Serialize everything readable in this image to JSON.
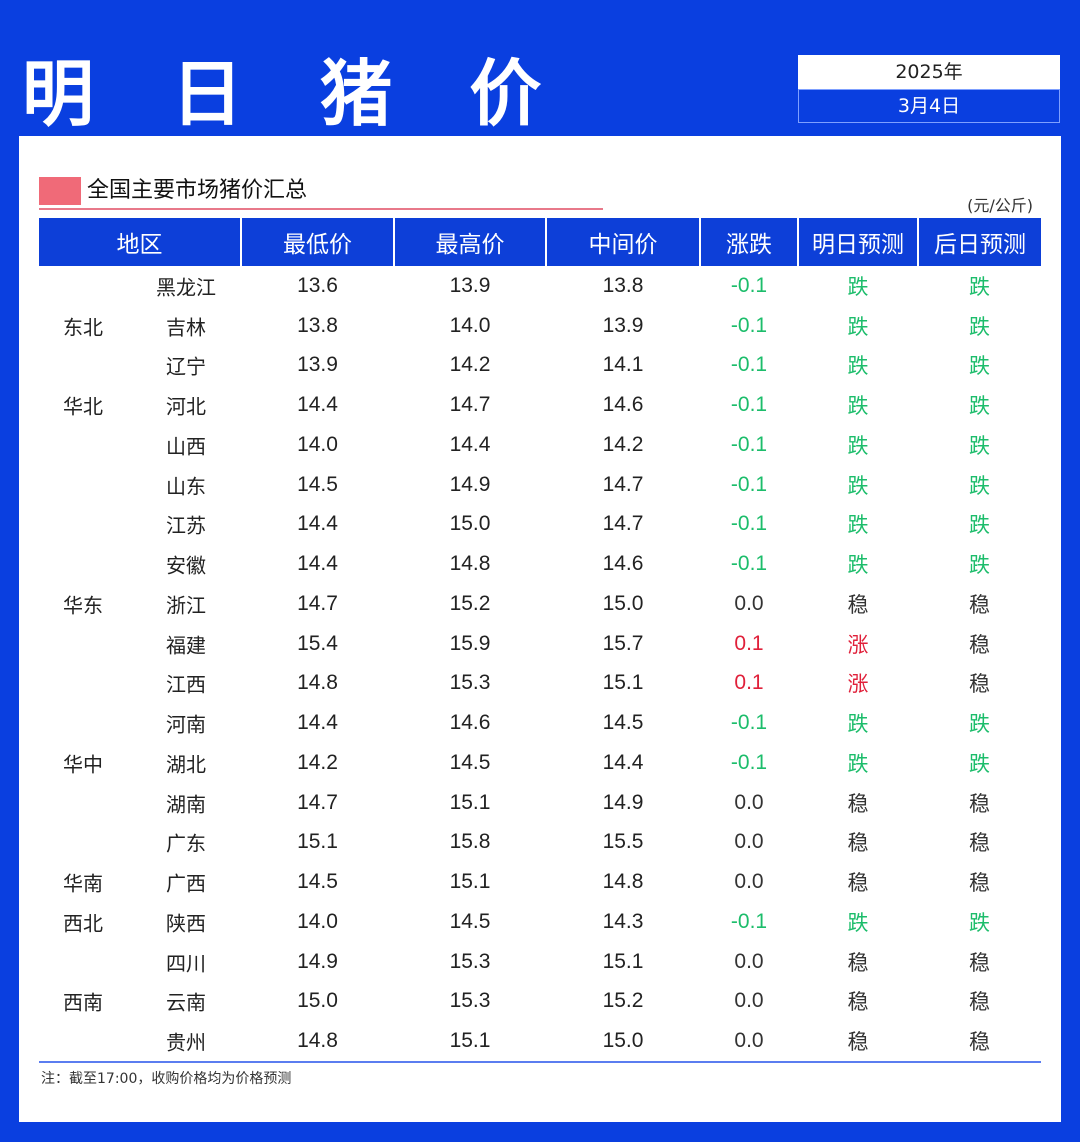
{
  "header": {
    "title": "明 日 猪 价",
    "year": "2025年",
    "date": "3月4日"
  },
  "section": {
    "title": "全国主要市场猪价汇总",
    "unit": "(元/公斤)"
  },
  "table": {
    "columns": [
      "地区",
      "最低价",
      "最高价",
      "中间价",
      "涨跌",
      "明日预测",
      "后日预测"
    ],
    "rows": [
      {
        "region": "",
        "province": "黑龙江",
        "low": "13.6",
        "high": "13.9",
        "mid": "13.8",
        "change": "-0.1",
        "tomorrow": "跌",
        "day_after": "跌"
      },
      {
        "region": "东北",
        "province": "吉林",
        "low": "13.8",
        "high": "14.0",
        "mid": "13.9",
        "change": "-0.1",
        "tomorrow": "跌",
        "day_after": "跌"
      },
      {
        "region": "",
        "province": "辽宁",
        "low": "13.9",
        "high": "14.2",
        "mid": "14.1",
        "change": "-0.1",
        "tomorrow": "跌",
        "day_after": "跌"
      },
      {
        "region": "华北",
        "province": "河北",
        "low": "14.4",
        "high": "14.7",
        "mid": "14.6",
        "change": "-0.1",
        "tomorrow": "跌",
        "day_after": "跌"
      },
      {
        "region": "",
        "province": "山西",
        "low": "14.0",
        "high": "14.4",
        "mid": "14.2",
        "change": "-0.1",
        "tomorrow": "跌",
        "day_after": "跌"
      },
      {
        "region": "",
        "province": "山东",
        "low": "14.5",
        "high": "14.9",
        "mid": "14.7",
        "change": "-0.1",
        "tomorrow": "跌",
        "day_after": "跌"
      },
      {
        "region": "",
        "province": "江苏",
        "low": "14.4",
        "high": "15.0",
        "mid": "14.7",
        "change": "-0.1",
        "tomorrow": "跌",
        "day_after": "跌"
      },
      {
        "region": "",
        "province": "安徽",
        "low": "14.4",
        "high": "14.8",
        "mid": "14.6",
        "change": "-0.1",
        "tomorrow": "跌",
        "day_after": "跌"
      },
      {
        "region": "华东",
        "province": "浙江",
        "low": "14.7",
        "high": "15.2",
        "mid": "15.0",
        "change": "0.0",
        "tomorrow": "稳",
        "day_after": "稳"
      },
      {
        "region": "",
        "province": "福建",
        "low": "15.4",
        "high": "15.9",
        "mid": "15.7",
        "change": "0.1",
        "tomorrow": "涨",
        "day_after": "稳"
      },
      {
        "region": "",
        "province": "江西",
        "low": "14.8",
        "high": "15.3",
        "mid": "15.1",
        "change": "0.1",
        "tomorrow": "涨",
        "day_after": "稳"
      },
      {
        "region": "",
        "province": "河南",
        "low": "14.4",
        "high": "14.6",
        "mid": "14.5",
        "change": "-0.1",
        "tomorrow": "跌",
        "day_after": "跌"
      },
      {
        "region": "华中",
        "province": "湖北",
        "low": "14.2",
        "high": "14.5",
        "mid": "14.4",
        "change": "-0.1",
        "tomorrow": "跌",
        "day_after": "跌"
      },
      {
        "region": "",
        "province": "湖南",
        "low": "14.7",
        "high": "15.1",
        "mid": "14.9",
        "change": "0.0",
        "tomorrow": "稳",
        "day_after": "稳"
      },
      {
        "region": "",
        "province": "广东",
        "low": "15.1",
        "high": "15.8",
        "mid": "15.5",
        "change": "0.0",
        "tomorrow": "稳",
        "day_after": "稳"
      },
      {
        "region": "华南",
        "province": "广西",
        "low": "14.5",
        "high": "15.1",
        "mid": "14.8",
        "change": "0.0",
        "tomorrow": "稳",
        "day_after": "稳"
      },
      {
        "region": "西北",
        "province": "陕西",
        "low": "14.0",
        "high": "14.5",
        "mid": "14.3",
        "change": "-0.1",
        "tomorrow": "跌",
        "day_after": "跌"
      },
      {
        "region": "",
        "province": "四川",
        "low": "14.9",
        "high": "15.3",
        "mid": "15.1",
        "change": "0.0",
        "tomorrow": "稳",
        "day_after": "稳"
      },
      {
        "region": "西南",
        "province": "云南",
        "low": "15.0",
        "high": "15.3",
        "mid": "15.2",
        "change": "0.0",
        "tomorrow": "稳",
        "day_after": "稳"
      },
      {
        "region": "",
        "province": "贵州",
        "low": "14.8",
        "high": "15.1",
        "mid": "15.0",
        "change": "0.0",
        "tomorrow": "稳",
        "day_after": "稳"
      }
    ]
  },
  "note": "注：截至17:00，收购价格均为价格预测",
  "colors": {
    "background_blue": "#0a3fe0",
    "header_blue": "#0d3fd8",
    "down_green": "#1cbd6b",
    "up_red": "#e0203a",
    "marker_pink": "#f06a78"
  }
}
